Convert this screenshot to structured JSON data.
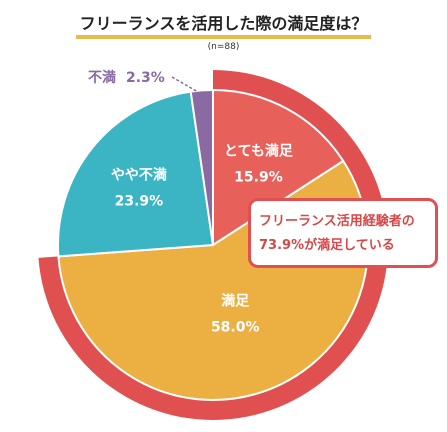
{
  "title": "フリーランスを活用した際の満足度は？",
  "subtitle": "(n=88)",
  "callout": {
    "line1": "フリーランス活用経験者の",
    "line2": "73.9%が満足している"
  },
  "colors": {
    "very_satisfied": "#e8605a",
    "satisfied": "#ecb042",
    "somewhat_dissatisfied": "#3bb5c4",
    "dissatisfied": "#8a6aa2",
    "highlight_ring": "#e05050"
  },
  "chart_data": {
    "type": "pie",
    "title": "フリーランスを活用した際の満足度は？",
    "slices": [
      {
        "label": "とても満足",
        "value": 15.9,
        "value_label": "15.9%",
        "color": "#e8605a"
      },
      {
        "label": "満足",
        "value": 58.0,
        "value_label": "58.0%",
        "color": "#ecb042"
      },
      {
        "label": "やや不満",
        "value": 23.9,
        "value_label": "23.9%",
        "color": "#3bb5c4"
      },
      {
        "label": "不満",
        "value": 2.3,
        "value_label": "2.3%",
        "color": "#8a6aa2"
      }
    ],
    "highlighted_total": 73.9
  }
}
